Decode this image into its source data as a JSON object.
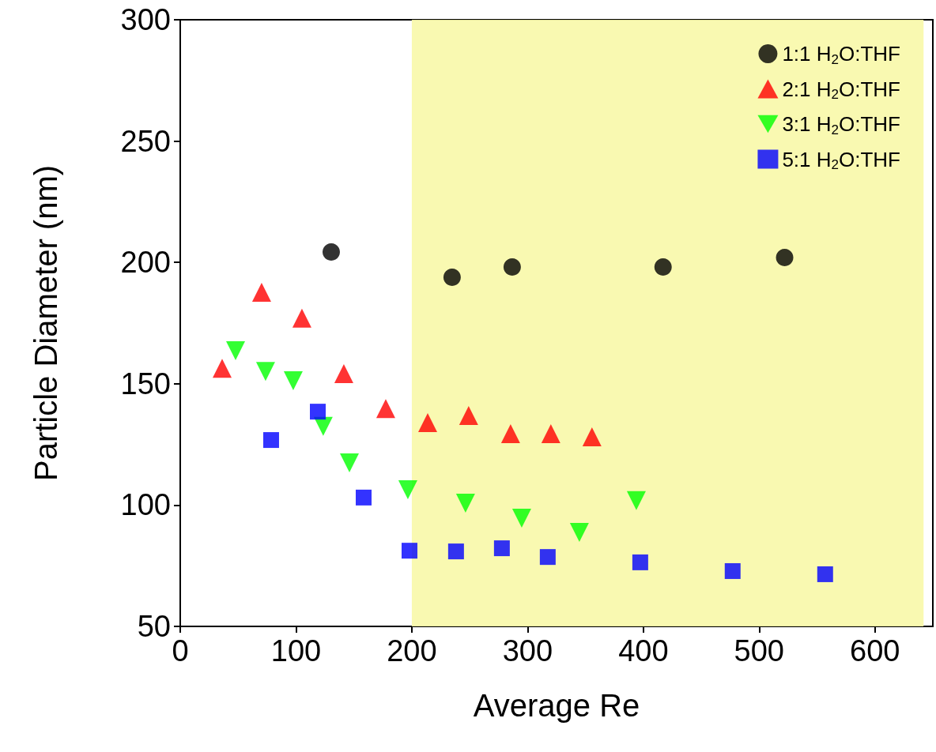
{
  "chart_data": {
    "type": "scatter",
    "xlabel": "Average Re",
    "ylabel": "Particle Diameter (nm)",
    "xlim": [
      0,
      650
    ],
    "xticks": [
      0,
      100,
      200,
      300,
      400,
      500,
      600
    ],
    "ylim": [
      50,
      300
    ],
    "yticks": [
      50,
      100,
      150,
      200,
      250,
      300
    ],
    "grid": false,
    "legend": "top right",
    "bands": [
      {
        "axis": "x",
        "from": 200,
        "to": 642,
        "color": "#f8f8a8"
      }
    ],
    "series": [
      {
        "name": "1:1 H$_{2}$O:THF",
        "color": "#000000",
        "marker": "circle",
        "x": [
          130.4,
          234.8,
          286.7,
          417,
          522
        ],
        "values": [
          204.3,
          193.9,
          198.1,
          198.1,
          202
        ]
      },
      {
        "name": "2:1 H$_{2}$O:THF",
        "color": "#ff0000",
        "marker": "triangle",
        "x": [
          36.2,
          70.3,
          105.1,
          141.3,
          177.5,
          213.7,
          249.1,
          285.3,
          320.1,
          355.6
        ],
        "values": [
          156.4,
          187.7,
          177,
          154.2,
          139.8,
          134,
          136.9,
          129.4,
          129.4,
          128.1
        ]
      },
      {
        "name": "3:1 H$_{2}$O:THF",
        "color": "#00ff00",
        "marker": "triangle-down",
        "x": [
          47.8,
          73.7,
          97.6,
          123.5,
          146.1,
          196.6,
          246.4,
          294.9,
          344.7,
          393.9
        ],
        "values": [
          163.6,
          155.1,
          151.2,
          132.4,
          117.4,
          106.3,
          100.8,
          94.6,
          88.7,
          101.8
        ]
      },
      {
        "name": "5:1 H$_{2}$O:THF",
        "color": "#0000ff",
        "marker": "square",
        "x": [
          78.5,
          118.8,
          158.4,
          198,
          238.2,
          277.8,
          317.4,
          397.3,
          477.1,
          557
        ],
        "values": [
          126.8,
          138.5,
          103.1,
          81.2,
          80.9,
          82.2,
          78.6,
          76.4,
          72.8,
          71.5
        ]
      }
    ]
  }
}
